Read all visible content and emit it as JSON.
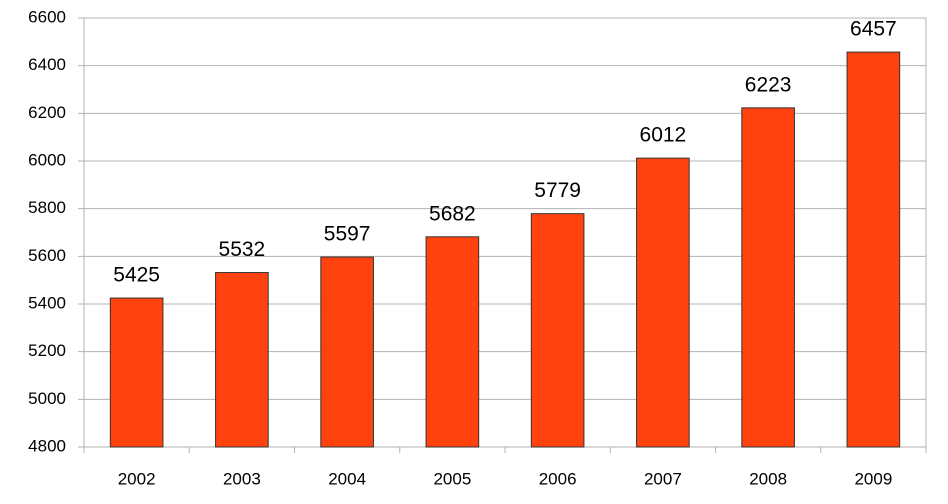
{
  "chart_data": {
    "type": "bar",
    "categories": [
      "2002",
      "2003",
      "2004",
      "2005",
      "2006",
      "2007",
      "2008",
      "2009"
    ],
    "values": [
      5425,
      5532,
      5597,
      5682,
      5779,
      6012,
      6223,
      6457
    ],
    "color": "#ff420e",
    "ylim": [
      4800,
      6600
    ],
    "yticks": [
      4800,
      5000,
      5200,
      5400,
      5600,
      5800,
      6000,
      6200,
      6400,
      6600
    ],
    "grid": true
  }
}
